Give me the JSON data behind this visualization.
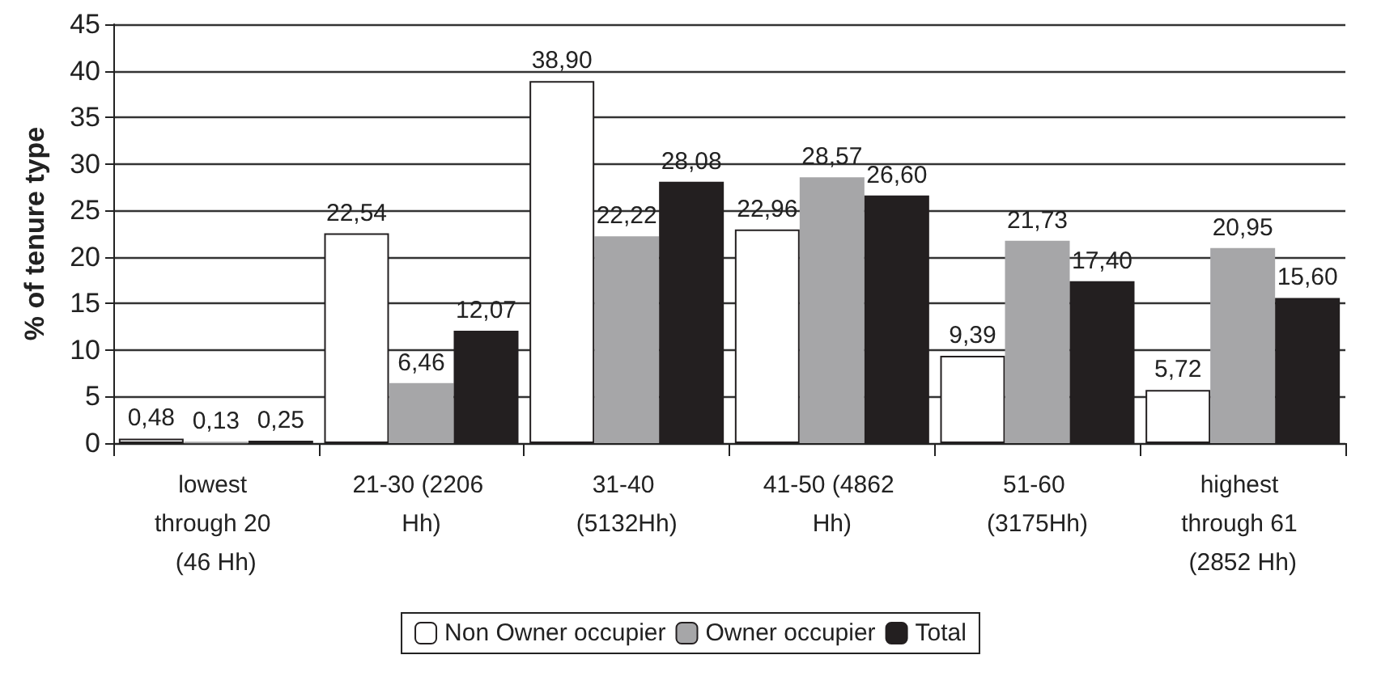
{
  "chart_data": {
    "type": "bar",
    "ylabel": "% of tenure type",
    "categories": [
      "lowest through 20 (46 Hh)",
      "21-30 (2206 Hh)",
      "31-40 (5132Hh)",
      "41-50 (4862 Hh)",
      "51-60 (3175Hh)",
      "highest through 61 (2852 Hh)"
    ],
    "series": [
      {
        "name": "Non Owner occupier",
        "color": "#ffffff",
        "values": [
          0.48,
          22.54,
          38.9,
          22.96,
          9.39,
          5.72
        ],
        "value_labels": [
          "0,48",
          "22,54",
          "38,90",
          "22,96",
          "9,39",
          "5,72"
        ]
      },
      {
        "name": "Owner occupier",
        "color": "#a6a6a8",
        "values": [
          0.13,
          6.46,
          22.22,
          28.57,
          21.73,
          20.95
        ],
        "value_labels": [
          "0,13",
          "6,46",
          "22,22",
          "28,57",
          "21,73",
          "20,95"
        ]
      },
      {
        "name": "Total",
        "color": "#231f20",
        "values": [
          0.25,
          12.07,
          28.08,
          26.6,
          17.4,
          15.6
        ],
        "value_labels": [
          "0,25",
          "12,07",
          "28,08",
          "26,60",
          "17,40",
          "15,60"
        ]
      }
    ],
    "ylim": [
      0,
      45
    ],
    "yticks": [
      0,
      5,
      10,
      15,
      20,
      25,
      30,
      35,
      40,
      45
    ],
    "grid": "y",
    "legend": "bottom"
  }
}
